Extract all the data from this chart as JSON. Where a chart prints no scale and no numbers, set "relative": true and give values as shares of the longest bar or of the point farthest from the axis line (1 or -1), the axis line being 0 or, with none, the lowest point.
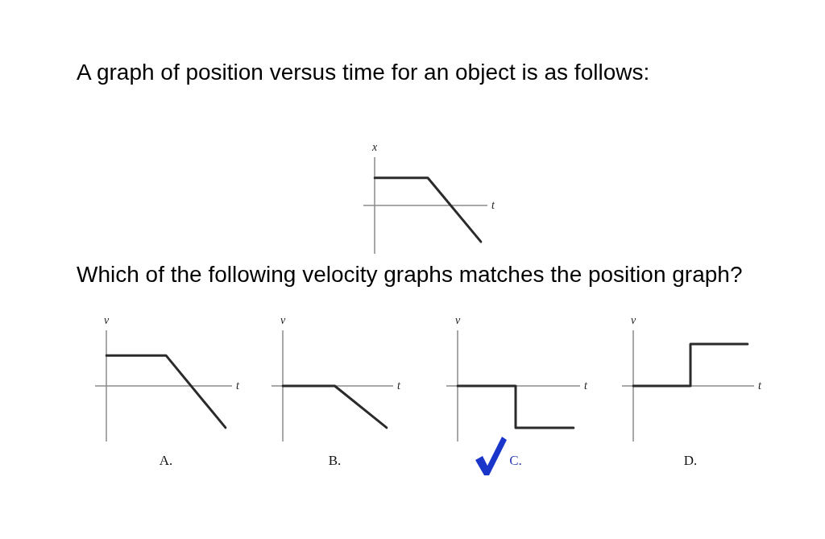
{
  "chart_data": [
    {
      "type": "line",
      "title": "A graph of position versus time for an object is as follows:",
      "xlabel": "t",
      "ylabel": "x",
      "relative": true,
      "categories": [
        null,
        null,
        null
      ],
      "values": [
        0.76,
        0.76,
        -1
      ],
      "color": "#2b2b2b"
    },
    {
      "type": "other",
      "title": "Which of the following velocity graphs matches the position graph?"
    },
    {
      "type": "line",
      "title": "A.",
      "xlabel": "t",
      "ylabel": "v",
      "relative": true,
      "categories": [
        null,
        null,
        null
      ],
      "values": [
        0.73,
        0.73,
        -1
      ],
      "color": "#2b2b2b"
    },
    {
      "type": "line",
      "title": "B.",
      "xlabel": "t",
      "ylabel": "v",
      "relative": true,
      "categories": [
        null,
        null,
        null
      ],
      "values": [
        0,
        0,
        -1
      ],
      "color": "#2b2b2b"
    },
    {
      "type": "step",
      "title": "C.",
      "xlabel": "t",
      "ylabel": "v",
      "relative": true,
      "categories": [
        null,
        null,
        null
      ],
      "values": [
        0,
        -1,
        -1
      ],
      "color": "#2b2b2b"
    },
    {
      "type": "step",
      "title": "D.",
      "xlabel": "t",
      "ylabel": "v",
      "relative": true,
      "categories": [
        null,
        null,
        null
      ],
      "values": [
        0,
        1,
        1
      ],
      "color": "#2b2b2b"
    }
  ]
}
